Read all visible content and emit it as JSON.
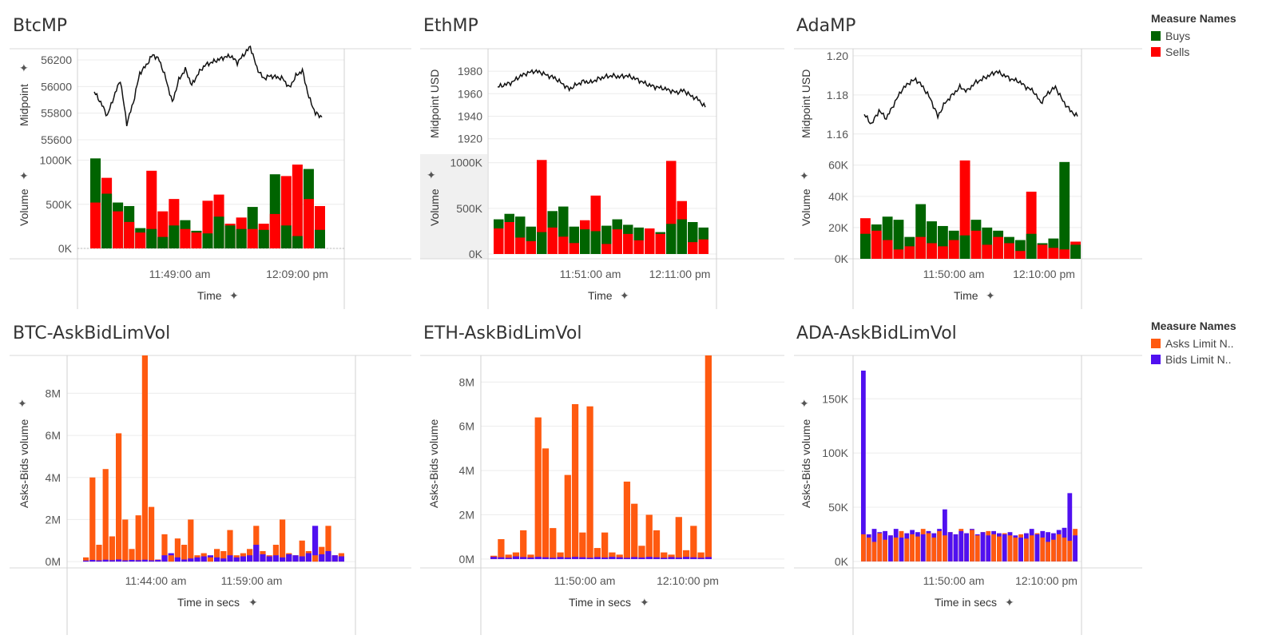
{
  "top": {
    "panels": [
      {
        "title": "BtcMP",
        "mid_label": "Midpoint",
        "vol_label": "Volume",
        "x_label": "Time"
      },
      {
        "title": "EthMP",
        "mid_label": "Midpoint USD",
        "vol_label": "Volume",
        "x_label": "Time"
      },
      {
        "title": "AdaMP",
        "mid_label": "Midpoint USD",
        "vol_label": "Volume",
        "x_label": "Time"
      }
    ],
    "legend": {
      "title": "Measure Names",
      "items": [
        {
          "label": "Buys",
          "color": "#006400"
        },
        {
          "label": "Sells",
          "color": "#ff0000"
        }
      ]
    }
  },
  "bottom": {
    "panels": [
      {
        "title": "BTC-AskBidLimVol",
        "y_label": "Asks-Bids volume",
        "x_label": "Time in secs"
      },
      {
        "title": "ETH-AskBidLimVol",
        "y_label": "Asks-Bids volume",
        "x_label": "Time in secs"
      },
      {
        "title": "ADA-AskBidLimVol",
        "y_label": "Asks-Bids volume",
        "x_label": "Time in secs"
      }
    ],
    "legend": {
      "title": "Measure Names",
      "items": [
        {
          "label": "Asks Limit N..",
          "color": "#ff5a10"
        },
        {
          "label": "Bids Limit N..",
          "color": "#5010f0"
        }
      ]
    }
  },
  "chart_data": [
    {
      "type": "line",
      "title": "BtcMP",
      "ylabel": "Midpoint",
      "xlabel": "Time",
      "x_ticks": [
        "11:49:00 am",
        "12:09:00 pm"
      ],
      "y_ticks": [
        "56200",
        "56000",
        "55800",
        "55600"
      ],
      "ylim": [
        55600,
        56200
      ],
      "series": [
        {
          "values": [
            55960,
            55880,
            55780,
            55920,
            56050,
            55720,
            55880,
            56100,
            56160,
            56240,
            56200,
            56060,
            55880,
            56050,
            56130,
            56010,
            56100,
            56160,
            56180,
            56200,
            56220,
            56230,
            56180,
            56240,
            56300,
            56140,
            56060,
            56080,
            56070,
            56060,
            55990,
            56080,
            56120,
            55920,
            55800,
            55770
          ]
        }
      ]
    },
    {
      "type": "bar",
      "title": "BtcMP",
      "ylabel": "Volume",
      "xlabel": "Time",
      "x_ticks": [
        "11:49:00 am",
        "12:09:00 pm"
      ],
      "y_ticks": [
        "1000K",
        "500K",
        "0K"
      ],
      "ylim": [
        0,
        1050000
      ],
      "series": [
        {
          "name": "Buys",
          "values": [
            1020000,
            620000,
            520000,
            480000,
            230000,
            220000,
            130000,
            260000,
            320000,
            200000,
            170000,
            360000,
            260000,
            220000,
            470000,
            210000,
            840000,
            260000,
            140000,
            900000,
            210000
          ]
        },
        {
          "name": "Sells",
          "values": [
            520000,
            800000,
            420000,
            300000,
            180000,
            880000,
            420000,
            560000,
            220000,
            180000,
            540000,
            610000,
            280000,
            350000,
            220000,
            280000,
            390000,
            820000,
            950000,
            560000,
            480000
          ]
        }
      ]
    },
    {
      "type": "line",
      "title": "EthMP",
      "ylabel": "Midpoint USD",
      "xlabel": "Time",
      "x_ticks": [
        "11:51:00 am",
        "12:11:00 pm"
      ],
      "y_ticks": [
        "1980",
        "1960",
        "1940",
        "1920"
      ],
      "ylim": [
        1912,
        1990
      ],
      "series": [
        {
          "values": [
            1966,
            1968,
            1970,
            1975,
            1978,
            1980,
            1979,
            1976,
            1974,
            1969,
            1964,
            1968,
            1971,
            1970,
            1973,
            1975,
            1976,
            1975,
            1976,
            1974,
            1971,
            1968,
            1966,
            1965,
            1963,
            1961,
            1963,
            1958,
            1955,
            1948
          ]
        }
      ]
    },
    {
      "type": "bar",
      "title": "EthMP",
      "ylabel": "Volume",
      "xlabel": "Time",
      "x_ticks": [
        "11:51:00 am",
        "12:11:00 pm"
      ],
      "y_ticks": [
        "1000K",
        "500K",
        "0K"
      ],
      "ylim": [
        0,
        1050000
      ],
      "series": [
        {
          "name": "Buys",
          "values": [
            380000,
            440000,
            410000,
            300000,
            240000,
            470000,
            520000,
            300000,
            270000,
            250000,
            310000,
            380000,
            320000,
            290000,
            280000,
            240000,
            330000,
            380000,
            350000,
            290000
          ]
        },
        {
          "name": "Sells",
          "values": [
            280000,
            350000,
            180000,
            140000,
            1030000,
            290000,
            190000,
            120000,
            370000,
            640000,
            110000,
            270000,
            220000,
            150000,
            280000,
            220000,
            1020000,
            580000,
            130000,
            160000
          ]
        }
      ]
    },
    {
      "type": "line",
      "title": "AdaMP",
      "ylabel": "Midpoint USD",
      "xlabel": "Time",
      "x_ticks": [
        "11:50:00 am",
        "12:10:00 pm"
      ],
      "y_ticks": [
        "1.20",
        "1.18",
        "1.16"
      ],
      "ylim": [
        1.155,
        1.202
      ],
      "series": [
        {
          "values": [
            1.17,
            1.165,
            1.172,
            1.168,
            1.175,
            1.182,
            1.186,
            1.188,
            1.184,
            1.178,
            1.169,
            1.176,
            1.18,
            1.184,
            1.182,
            1.186,
            1.188,
            1.19,
            1.192,
            1.19,
            1.188,
            1.187,
            1.184,
            1.182,
            1.176,
            1.181,
            1.184,
            1.177,
            1.172,
            1.169
          ]
        }
      ]
    },
    {
      "type": "bar",
      "title": "AdaMP",
      "ylabel": "Volume",
      "xlabel": "Time",
      "x_ticks": [
        "11:50:00 am",
        "12:10:00 pm"
      ],
      "y_ticks": [
        "60K",
        "40K",
        "20K",
        "0K"
      ],
      "ylim": [
        0,
        66000
      ],
      "series": [
        {
          "name": "Buys",
          "values": [
            16000,
            22000,
            27000,
            25000,
            14000,
            35000,
            24000,
            21000,
            18000,
            15000,
            25000,
            20000,
            18000,
            14000,
            12000,
            16000,
            10000,
            13000,
            62000,
            9000
          ]
        },
        {
          "name": "Sells",
          "values": [
            26000,
            18000,
            12000,
            6000,
            8000,
            14000,
            10000,
            8000,
            12000,
            63000,
            18000,
            9000,
            14000,
            10000,
            5000,
            43000,
            9000,
            7000,
            6000,
            11000
          ]
        }
      ]
    },
    {
      "type": "bar",
      "title": "BTC-AskBidLimVol",
      "ylabel": "Asks-Bids volume",
      "xlabel": "Time in secs",
      "x_ticks": [
        "11:44:00 am",
        "11:59:00 am"
      ],
      "y_ticks": [
        "8M",
        "6M",
        "4M",
        "2M",
        "0M"
      ],
      "ylim": [
        -300000,
        9800000
      ],
      "series": [
        {
          "name": "Asks Limit N..",
          "values": [
            200000,
            4000000,
            800000,
            4400000,
            1200000,
            6100000,
            2000000,
            600000,
            2200000,
            9800000,
            2600000,
            100000,
            1300000,
            300000,
            1100000,
            800000,
            2000000,
            300000,
            400000,
            200000,
            600000,
            500000,
            1500000,
            300000,
            400000,
            600000,
            1700000,
            500000,
            300000,
            800000,
            2000000,
            400000,
            300000,
            1000000,
            500000,
            300000,
            700000,
            1700000,
            300000,
            400000
          ]
        },
        {
          "name": "Bids Limit N..",
          "values": [
            50000,
            80000,
            60000,
            90000,
            70000,
            100000,
            60000,
            80000,
            70000,
            90000,
            60000,
            80000,
            300000,
            400000,
            200000,
            100000,
            150000,
            200000,
            250000,
            300000,
            200000,
            150000,
            300000,
            200000,
            250000,
            300000,
            800000,
            350000,
            250000,
            300000,
            200000,
            350000,
            300000,
            250000,
            400000,
            1700000,
            350000,
            500000,
            300000,
            250000
          ]
        }
      ]
    },
    {
      "type": "bar",
      "title": "ETH-AskBidLimVol",
      "ylabel": "Asks-Bids volume",
      "xlabel": "Time in secs",
      "x_ticks": [
        "11:50:00 am",
        "12:10:00 pm"
      ],
      "y_ticks": [
        "8M",
        "6M",
        "4M",
        "2M",
        "0M"
      ],
      "ylim": [
        -400000,
        9200000
      ],
      "series": [
        {
          "name": "Asks Limit N..",
          "values": [
            150000,
            900000,
            200000,
            300000,
            1300000,
            200000,
            6400000,
            5000000,
            1400000,
            300000,
            3800000,
            7000000,
            1200000,
            6900000,
            500000,
            1200000,
            300000,
            200000,
            3500000,
            2500000,
            600000,
            2000000,
            1300000,
            300000,
            200000,
            1900000,
            400000,
            1500000,
            300000,
            9200000
          ]
        },
        {
          "name": "Bids Limit N..",
          "values": [
            100000,
            80000,
            60000,
            120000,
            90000,
            70000,
            100000,
            80000,
            60000,
            90000,
            70000,
            100000,
            80000,
            60000,
            90000,
            70000,
            100000,
            80000,
            60000,
            90000,
            70000,
            100000,
            80000,
            60000,
            90000,
            70000,
            100000,
            80000,
            60000,
            90000
          ]
        }
      ]
    },
    {
      "type": "bar",
      "title": "ADA-AskBidLimVol",
      "ylabel": "Asks-Bids volume",
      "xlabel": "Time in secs",
      "x_ticks": [
        "11:50:00 am",
        "12:10:00 pm"
      ],
      "y_ticks": [
        "150K",
        "100K",
        "50K",
        "0K"
      ],
      "ylim": [
        -6000,
        190000
      ],
      "series": [
        {
          "name": "Asks Limit N..",
          "values": [
            25000,
            22000,
            18000,
            26000,
            20000,
            24000,
            22000,
            28000,
            21000,
            25000,
            23000,
            30000,
            26000,
            22000,
            28000,
            24000,
            27000,
            25000,
            30000,
            26000,
            29000,
            24000,
            27000,
            28000,
            25000,
            23000,
            26000,
            24000,
            22000,
            25000,
            21000,
            24000,
            26000,
            22000,
            18000,
            20000,
            25000,
            22000,
            19000,
            30000
          ]
        },
        {
          "name": "Bids Limit N..",
          "values": [
            176000,
            25000,
            30000,
            27000,
            28000,
            24000,
            30000,
            22000,
            26000,
            29000,
            27000,
            25000,
            28000,
            26000,
            30000,
            48000,
            27000,
            25000,
            28000,
            26000,
            30000,
            25000,
            27000,
            24000,
            28000,
            26000,
            25000,
            27000,
            24000,
            22000,
            26000,
            30000,
            25000,
            28000,
            27000,
            26000,
            29000,
            31000,
            63000,
            24000
          ]
        }
      ]
    }
  ]
}
